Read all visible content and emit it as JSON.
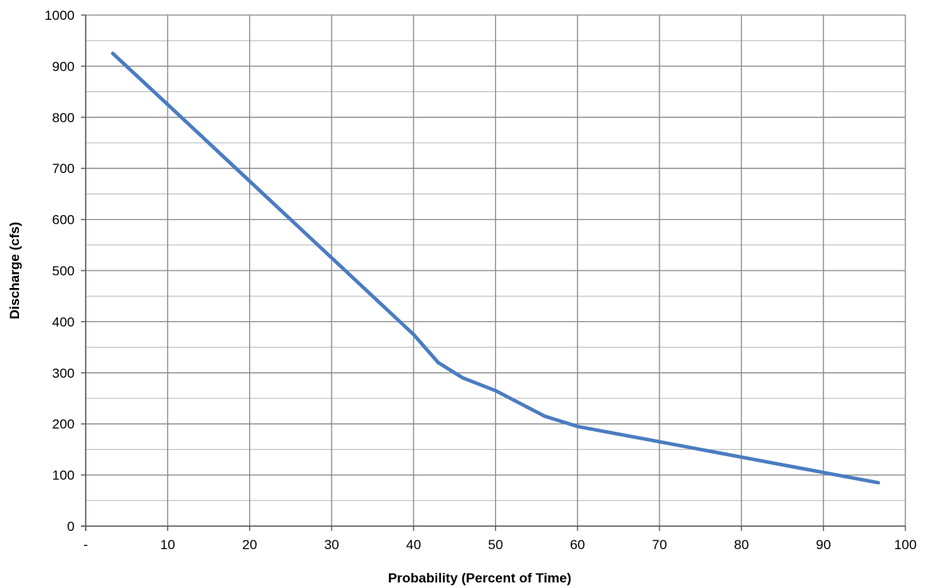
{
  "chart_data": {
    "type": "line",
    "title": "",
    "xlabel": "Probability (Percent of Time)",
    "ylabel": "Discharge (cfs)",
    "xlim": [
      0,
      100
    ],
    "ylim": [
      0,
      1000
    ],
    "x_ticks": [
      {
        "value": 0,
        "label": "-"
      },
      {
        "value": 10,
        "label": "10"
      },
      {
        "value": 20,
        "label": "20"
      },
      {
        "value": 30,
        "label": "30"
      },
      {
        "value": 40,
        "label": "40"
      },
      {
        "value": 50,
        "label": "50"
      },
      {
        "value": 60,
        "label": "60"
      },
      {
        "value": 70,
        "label": "70"
      },
      {
        "value": 80,
        "label": "80"
      },
      {
        "value": 90,
        "label": "90"
      },
      {
        "value": 100,
        "label": "100"
      }
    ],
    "y_ticks": [
      {
        "value": 0,
        "label": "0"
      },
      {
        "value": 100,
        "label": "100"
      },
      {
        "value": 200,
        "label": "200"
      },
      {
        "value": 300,
        "label": "300"
      },
      {
        "value": 400,
        "label": "400"
      },
      {
        "value": 500,
        "label": "500"
      },
      {
        "value": 600,
        "label": "600"
      },
      {
        "value": 700,
        "label": "700"
      },
      {
        "value": 800,
        "label": "800"
      },
      {
        "value": 900,
        "label": "900"
      },
      {
        "value": 1000,
        "label": "1000"
      }
    ],
    "grid": true,
    "y_minor_step": 50,
    "line_color": "#4a7cc1",
    "grid_color": "#8a8a8a",
    "series": [
      {
        "name": "",
        "x": [
          3.3,
          10,
          20,
          30,
          40,
          43,
          46,
          50,
          56,
          60,
          70,
          80,
          90,
          96.7
        ],
        "y": [
          925,
          825,
          675,
          525,
          375,
          320,
          290,
          265,
          215,
          195,
          165,
          135,
          105,
          85
        ]
      }
    ]
  }
}
